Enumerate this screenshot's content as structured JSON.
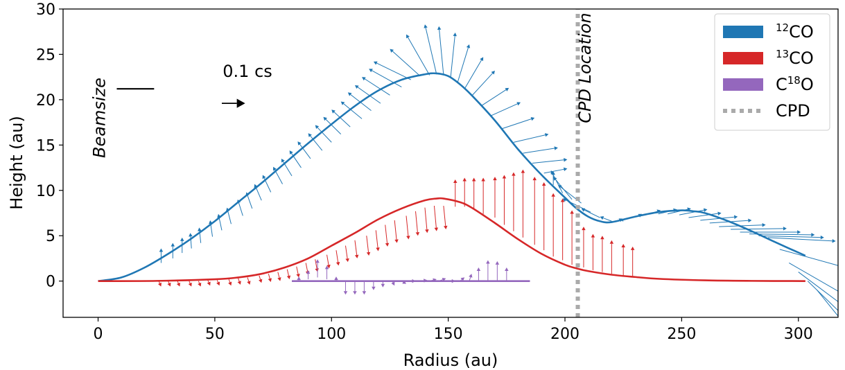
{
  "chart_data": {
    "type": "line",
    "xlabel": "Radius (au)",
    "ylabel": "Height (au)",
    "xlim": [
      -15,
      317
    ],
    "ylim": [
      -4,
      30
    ],
    "xticks": [
      0,
      50,
      100,
      150,
      200,
      250,
      300
    ],
    "yticks": [
      0,
      5,
      10,
      15,
      20,
      25,
      30
    ],
    "grid": false,
    "legend_position": "top-right",
    "series": [
      {
        "name": "12CO",
        "label_main": "CO",
        "label_sup": "12",
        "label_sup_pos": "before",
        "color": "#1f77b4",
        "x": [
          0,
          10,
          20,
          30,
          40,
          50,
          60,
          70,
          80,
          90,
          100,
          110,
          120,
          130,
          140,
          145,
          150,
          155,
          160,
          170,
          180,
          190,
          200,
          205,
          210,
          215,
          220,
          230,
          240,
          250,
          255,
          260,
          270,
          280,
          290,
          303
        ],
        "y": [
          0,
          0.4,
          1.5,
          3.0,
          4.7,
          6.6,
          8.7,
          10.8,
          13.0,
          15.2,
          17.3,
          19.3,
          21.0,
          22.2,
          22.8,
          22.9,
          22.6,
          21.7,
          20.5,
          17.7,
          14.5,
          11.7,
          9.2,
          8.0,
          7.1,
          6.6,
          6.5,
          7.1,
          7.6,
          7.8,
          7.7,
          7.5,
          6.6,
          5.5,
          4.3,
          2.8
        ]
      },
      {
        "name": "13CO",
        "label_main": "CO",
        "label_sup": "13",
        "label_sup_pos": "before",
        "color": "#d62728",
        "x": [
          0,
          25,
          50,
          60,
          70,
          80,
          90,
          100,
          110,
          120,
          130,
          140,
          145,
          148,
          155,
          160,
          170,
          180,
          190,
          200,
          205,
          210,
          220,
          230,
          240,
          260,
          280,
          303
        ],
        "y": [
          0,
          0.02,
          0.2,
          0.4,
          0.8,
          1.5,
          2.5,
          3.9,
          5.3,
          6.8,
          8.0,
          8.9,
          9.1,
          9.1,
          8.7,
          8.1,
          6.4,
          4.6,
          3.0,
          1.8,
          1.4,
          1.1,
          0.7,
          0.45,
          0.25,
          0.08,
          0.02,
          0
        ]
      },
      {
        "name": "C18O",
        "label_main": "C",
        "label_sup": "18",
        "label_tail": "O",
        "label_sup_pos": "middle",
        "color": "#9467bd",
        "x": [
          83,
          185
        ],
        "y": [
          0,
          0
        ]
      },
      {
        "name": "CPD",
        "label_main": "CPD",
        "color": "#aaaaaa",
        "style": "dotted",
        "x": [
          205.5,
          205.5
        ],
        "y": [
          -4,
          30
        ]
      }
    ],
    "velocity_arrows": [
      {
        "series": "12CO",
        "color": "#1f77b4",
        "arrows": [
          [
            27,
            2.0,
            0,
            1.6
          ],
          [
            32,
            2.5,
            0,
            1.7
          ],
          [
            36,
            3.1,
            0,
            1.7
          ],
          [
            40,
            3.6,
            -0.5,
            1.7
          ],
          [
            44,
            4.2,
            -0.7,
            1.7
          ],
          [
            49,
            4.9,
            -1,
            1.8
          ],
          [
            53,
            5.6,
            -1.5,
            1.8
          ],
          [
            57,
            6.3,
            -1.8,
            1.8
          ],
          [
            62,
            7.2,
            -2.2,
            1.8
          ],
          [
            66,
            8.0,
            -2.5,
            1.8
          ],
          [
            70,
            8.9,
            -3,
            1.8
          ],
          [
            74,
            9.8,
            -3.5,
            1.9
          ],
          [
            79,
            10.7,
            -4,
            1.9
          ],
          [
            83,
            11.6,
            -4.5,
            1.9
          ],
          [
            87,
            12.5,
            -5,
            1.9
          ],
          [
            91,
            13.5,
            -5.5,
            1.9
          ],
          [
            96,
            14.4,
            -6,
            1.9
          ],
          [
            100,
            15.3,
            -7,
            1.9
          ],
          [
            104,
            16.2,
            -7.5,
            1.9
          ],
          [
            108,
            17.0,
            -8,
            1.9
          ],
          [
            113,
            17.9,
            -9,
            1.9
          ],
          [
            117,
            18.8,
            -10,
            2.0
          ],
          [
            121,
            19.6,
            -11,
            2.0
          ],
          [
            125,
            20.5,
            -12,
            2.0
          ],
          [
            130,
            21.4,
            -14,
            2.0
          ],
          [
            134,
            22.2,
            -16,
            2.0
          ],
          [
            138,
            22.6,
            -13,
            3.0
          ],
          [
            142,
            22.7,
            -10,
            4.5
          ],
          [
            145,
            22.8,
            -5,
            5.5
          ],
          [
            148,
            22.7,
            -2,
            5.4
          ],
          [
            151,
            22.4,
            2,
            5.0
          ],
          [
            154,
            21.9,
            5,
            4.2
          ],
          [
            157,
            21.2,
            8,
            3.5
          ],
          [
            160,
            20.4,
            10,
            2.8
          ],
          [
            164,
            19.3,
            12,
            2.0
          ],
          [
            168,
            18.2,
            13,
            1.5
          ],
          [
            173,
            16.8,
            14,
            1.2
          ],
          [
            178,
            15.3,
            15,
            0.9
          ],
          [
            182,
            14.1,
            15,
            0.6
          ],
          [
            186,
            13.0,
            15,
            0.4
          ],
          [
            191,
            11.9,
            10,
            0.5
          ],
          [
            195,
            10.6,
            0,
            1.5
          ],
          [
            199,
            9.7,
            -5,
            2.5
          ],
          [
            203,
            9.0,
            -8,
            2.5
          ],
          [
            207,
            8.6,
            -10,
            2.0
          ],
          [
            211,
            7.6,
            -12,
            1.5
          ],
          [
            215,
            7.0,
            -8,
            1.0
          ],
          [
            220,
            6.6,
            -5,
            0.5
          ],
          [
            225,
            6.6,
            -2,
            0.3
          ],
          [
            231,
            7.1,
            2,
            0.3
          ],
          [
            236,
            7.4,
            5,
            0.4
          ],
          [
            240,
            7.4,
            8,
            0.5
          ],
          [
            244,
            7.4,
            10,
            0.6
          ],
          [
            249,
            7.3,
            12,
            0.6
          ],
          [
            253,
            7.0,
            14,
            0.5
          ],
          [
            258,
            6.7,
            16,
            0.4
          ],
          [
            262,
            6.4,
            18,
            0.3
          ],
          [
            266,
            6.0,
            20,
            0.2
          ],
          [
            271,
            5.7,
            24,
            0.1
          ],
          [
            275,
            5.4,
            26,
            0
          ],
          [
            279,
            5.2,
            28,
            -0.1
          ],
          [
            283,
            5.0,
            28,
            -0.2
          ],
          [
            287,
            4.8,
            29,
            -0.4
          ],
          [
            292,
            3.5,
            28,
            -2
          ],
          [
            296,
            2.0,
            27,
            -4
          ],
          [
            300,
            1.0,
            26,
            -5
          ],
          [
            304,
            0,
            24,
            -6
          ],
          [
            308,
            -1,
            22,
            -7
          ]
        ]
      },
      {
        "series": "13CO",
        "color": "#d62728",
        "arrows": [
          [
            26,
            0,
            1,
            -0.6
          ],
          [
            30,
            0,
            1,
            -0.6
          ],
          [
            34,
            0,
            1,
            -0.6
          ],
          [
            39,
            0,
            1,
            -0.6
          ],
          [
            43,
            0,
            1,
            -0.6
          ],
          [
            47,
            0.1,
            1,
            -0.6
          ],
          [
            51,
            0.1,
            1,
            -0.6
          ],
          [
            56,
            0.2,
            1,
            -0.7
          ],
          [
            60,
            0.3,
            1,
            -0.7
          ],
          [
            64,
            0.4,
            1,
            -0.8
          ],
          [
            69,
            0.6,
            1,
            -0.8
          ],
          [
            73,
            0.8,
            1,
            -0.9
          ],
          [
            77,
            1.0,
            1,
            -1.0
          ],
          [
            81,
            1.3,
            1,
            -1.1
          ],
          [
            85,
            1.6,
            1,
            -1.2
          ],
          [
            89,
            2.0,
            1,
            -1.3
          ],
          [
            93,
            2.4,
            1,
            -1.4
          ],
          [
            98,
            2.9,
            1,
            -1.5
          ],
          [
            102,
            3.4,
            1,
            -1.7
          ],
          [
            106,
            3.9,
            1,
            -1.8
          ],
          [
            110,
            4.5,
            1,
            -2.0
          ],
          [
            115,
            5.0,
            1,
            -2.2
          ],
          [
            119,
            5.6,
            1,
            -2.3
          ],
          [
            123,
            6.2,
            1,
            -2.4
          ],
          [
            127,
            6.7,
            1,
            -2.5
          ],
          [
            132,
            7.2,
            1,
            -2.6
          ],
          [
            136,
            7.7,
            1,
            -2.7
          ],
          [
            140,
            8.1,
            1,
            -2.8
          ],
          [
            144,
            8.3,
            1,
            -2.8
          ],
          [
            148,
            8.3,
            1,
            -2.6
          ],
          [
            153,
            8.2,
            0,
            3.0
          ],
          [
            157,
            8.2,
            0,
            3.2
          ],
          [
            161,
            7.9,
            0,
            3.5
          ],
          [
            165,
            7.4,
            0,
            4.0
          ],
          [
            170,
            7.0,
            0,
            4.5
          ],
          [
            174,
            6.2,
            0,
            5.5
          ],
          [
            178,
            5.5,
            0,
            6.5
          ],
          [
            182,
            4.8,
            0,
            7.5
          ],
          [
            187,
            4.0,
            0,
            7.5
          ],
          [
            191,
            3.4,
            0,
            7.5
          ],
          [
            195,
            2.7,
            0,
            7.0
          ],
          [
            199,
            2.3,
            0,
            6.8
          ],
          [
            203,
            1.8,
            0,
            6.0
          ],
          [
            208,
            1.5,
            0,
            4.5
          ],
          [
            212,
            1.2,
            0,
            4.0
          ],
          [
            216,
            1.0,
            0,
            4.0
          ],
          [
            220,
            0.8,
            0,
            3.7
          ],
          [
            225,
            0.6,
            0,
            3.5
          ],
          [
            229,
            0.4,
            0,
            3.4
          ]
        ]
      },
      {
        "series": "C18O",
        "color": "#9467bd",
        "arrows": [
          [
            86,
            0,
            0,
            0.5
          ],
          [
            90,
            0.2,
            0,
            1.0
          ],
          [
            94,
            0.4,
            0,
            2.0
          ],
          [
            98,
            0.2,
            0,
            1.5
          ],
          [
            102,
            0,
            0,
            0.5
          ],
          [
            106,
            0,
            0,
            -1.5
          ],
          [
            110,
            0,
            0,
            -1.5
          ],
          [
            114,
            0,
            0,
            -1.5
          ],
          [
            118,
            0,
            0,
            -1.0
          ],
          [
            122,
            0,
            0,
            -0.7
          ],
          [
            126,
            0,
            1,
            -0.5
          ],
          [
            130,
            0,
            2,
            -0.3
          ],
          [
            134,
            0,
            2,
            0
          ],
          [
            138,
            0,
            3,
            0.1
          ],
          [
            142,
            0,
            3,
            0.2
          ],
          [
            146,
            0,
            3,
            0.3
          ],
          [
            150,
            0,
            3,
            0
          ],
          [
            155,
            0,
            2,
            0.4
          ],
          [
            159,
            0,
            1,
            0.8
          ],
          [
            163,
            0,
            0,
            1.5
          ],
          [
            167,
            0,
            0,
            2.3
          ],
          [
            171,
            0,
            0,
            2.2
          ],
          [
            175,
            0,
            0,
            1.5
          ]
        ]
      }
    ],
    "annotations": [
      {
        "text": "Beamsize",
        "italic": true,
        "rotation": -90,
        "x": 3,
        "y": 18
      },
      {
        "text": "0.1 cs",
        "italic": false,
        "x": 64,
        "y": 22.5
      },
      {
        "text": "CPD Location",
        "italic": true,
        "rotation": -90,
        "x": 211,
        "y": 23.5
      }
    ],
    "beam_bar": {
      "x": [
        8,
        24
      ],
      "y": 21.2
    },
    "scale_arrow": {
      "x": [
        53,
        63
      ],
      "y": 19.6
    }
  }
}
